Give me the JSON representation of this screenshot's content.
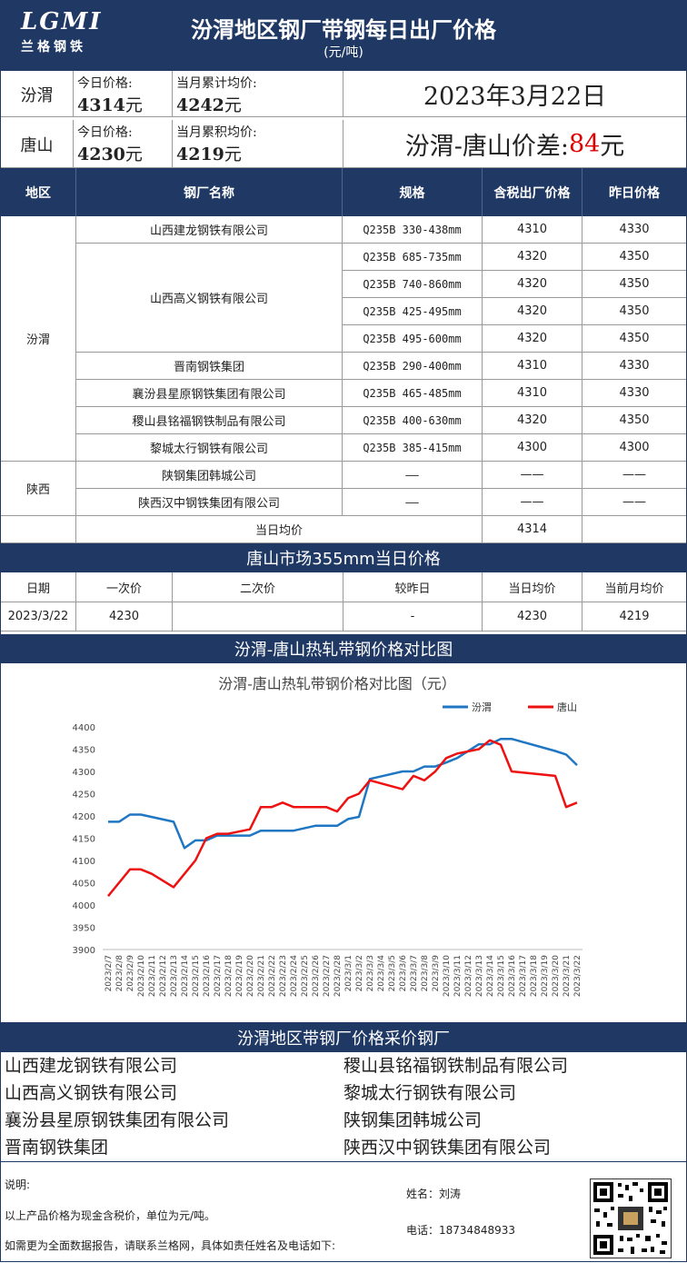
{
  "header": {
    "logo_text": "LGMI",
    "logo_sub": "兰格钢铁",
    "title": "汾渭地区钢厂带钢每日出厂价格",
    "unit": "(元/吨)"
  },
  "summary": {
    "fenwei": {
      "region": "汾渭",
      "today_label": "今日价格:",
      "today_value": "4314",
      "month_label": "当月累计均价:",
      "month_value": "4242",
      "yuan": "元"
    },
    "tangshan": {
      "region": "唐山",
      "today_label": "今日价格:",
      "today_value": "4230",
      "month_label": "当月累积均价:",
      "month_value": "4219",
      "yuan": "元"
    },
    "date": "2023年3月22日",
    "diff_label": "汾渭-唐山价差:",
    "diff_value": "84",
    "diff_unit": "元"
  },
  "table": {
    "headers": [
      "地区",
      "钢厂名称",
      "规格",
      "含税出厂价格",
      "昨日价格"
    ],
    "region_fenwei": "汾渭",
    "region_shaanxi": "陕西",
    "rows": [
      {
        "mill": "山西建龙钢铁有限公司",
        "spec": "Q235B 330-438mm",
        "price": "4310",
        "prev": "4330"
      },
      {
        "mill": "山西高义钢铁有限公司",
        "spec": "Q235B 685-735mm",
        "price": "4320",
        "prev": "4350"
      },
      {
        "mill": "",
        "spec": "Q235B 740-860mm",
        "price": "4320",
        "prev": "4350"
      },
      {
        "mill": "",
        "spec": "Q235B 425-495mm",
        "price": "4320",
        "prev": "4350"
      },
      {
        "mill": "",
        "spec": "Q235B 495-600mm",
        "price": "4320",
        "prev": "4350"
      },
      {
        "mill": "晋南钢铁集团",
        "spec": "Q235B 290-400mm",
        "price": "4310",
        "prev": "4330"
      },
      {
        "mill": "襄汾县星原钢铁集团有限公司",
        "spec": "Q235B 465-485mm",
        "price": "4310",
        "prev": "4330"
      },
      {
        "mill": "稷山县铭福钢铁制品有限公司",
        "spec": "Q235B 400-630mm",
        "price": "4320",
        "prev": "4350"
      },
      {
        "mill": "黎城太行钢铁有限公司",
        "spec": "Q235B 385-415mm",
        "price": "4300",
        "prev": "4300"
      },
      {
        "mill": "陕钢集团韩城公司",
        "spec": "——",
        "price": "——",
        "prev": "——"
      },
      {
        "mill": "陕西汉中钢铁集团有限公司",
        "spec": "——",
        "price": "——",
        "prev": "——"
      }
    ],
    "avg_label": "当日均价",
    "avg_value": "4314"
  },
  "tangshan_market": {
    "title": "唐山市场355mm当日价格",
    "headers": [
      "日期",
      "一次价",
      "二次价",
      "较昨日",
      "当日均价",
      "当前月均价"
    ],
    "row": [
      "2023/3/22",
      "4230",
      "",
      "-",
      "4230",
      "4219"
    ]
  },
  "chart_section_title": "汾渭-唐山热轧带钢价格对比图",
  "chart_data": {
    "type": "line",
    "title": "汾渭-唐山热轧带钢价格对比图（元）",
    "ylim": [
      3900,
      4400
    ],
    "yticks": [
      3900,
      3950,
      4000,
      4050,
      4100,
      4150,
      4200,
      4250,
      4300,
      4350,
      4400
    ],
    "grid": false,
    "legend_position": "top-right",
    "categories": [
      "2023/2/7",
      "2023/2/8",
      "2023/2/9",
      "2023/2/10",
      "2023/2/11",
      "2023/2/12",
      "2023/2/13",
      "2023/2/14",
      "2023/2/15",
      "2023/2/16",
      "2023/2/17",
      "2023/2/18",
      "2023/2/19",
      "2023/2/20",
      "2023/2/21",
      "2023/2/22",
      "2023/2/23",
      "2023/2/24",
      "2023/2/25",
      "2023/2/26",
      "2023/2/27",
      "2023/2/28",
      "2023/3/1",
      "2023/3/2",
      "2023/3/3",
      "2023/3/4",
      "2023/3/5",
      "2023/3/6",
      "2023/3/7",
      "2023/3/8",
      "2023/3/9",
      "2023/3/10",
      "2023/3/11",
      "2023/3/12",
      "2023/3/13",
      "2023/3/14",
      "2023/3/15",
      "2023/3/16",
      "2023/3/17",
      "2023/3/18",
      "2023/3/19",
      "2023/3/20",
      "2023/3/21",
      "2023/3/22"
    ],
    "series": [
      {
        "name": "汾渭",
        "color": "#1f77c4",
        "values": [
          4187,
          4187,
          4203,
          4203,
          null,
          null,
          4187,
          4128,
          4145,
          4145,
          4156,
          4156,
          4156,
          4156,
          4167,
          4167,
          4167,
          4167,
          null,
          4178,
          4178,
          4178,
          4193,
          4198,
          4283,
          null,
          null,
          4300,
          4300,
          4311,
          4311,
          4320,
          4330,
          null,
          4361,
          4361,
          4373,
          4373,
          null,
          null,
          null,
          4346,
          4338,
          4314
        ]
      },
      {
        "name": "唐山",
        "color": "#ee1111",
        "values": [
          4020,
          4050,
          4080,
          4080,
          4070,
          null,
          4040,
          4070,
          4100,
          4150,
          4160,
          4160,
          null,
          4170,
          4220,
          4220,
          4230,
          4220,
          4220,
          4220,
          4220,
          4210,
          4240,
          4250,
          4280,
          null,
          null,
          4260,
          4290,
          4280,
          4300,
          4330,
          4340,
          null,
          4350,
          4370,
          4360,
          4300,
          null,
          null,
          null,
          4290,
          4220,
          4230
        ]
      }
    ]
  },
  "companies_title": "汾渭地区带钢厂价格采价钢厂",
  "companies": [
    "山西建龙钢铁有限公司",
    "稷山县铭福钢铁制品有限公司",
    "山西高义钢铁有限公司",
    "黎城太行钢铁有限公司",
    "襄汾县星原钢铁集团有限公司",
    "陕钢集团韩城公司",
    "晋南钢铁集团",
    "陕西汉中钢铁集团有限公司"
  ],
  "notes": {
    "label": "说明:",
    "line1": "以上产品价格为现金含税价，单位为元/吨。",
    "line2": "如需更为全面数据报告，请联系兰格网，具体如责任姓名及电话如下:",
    "name_label": "姓名：",
    "name": "刘涛",
    "phone_label": "电话：",
    "phone": "18734848933"
  }
}
